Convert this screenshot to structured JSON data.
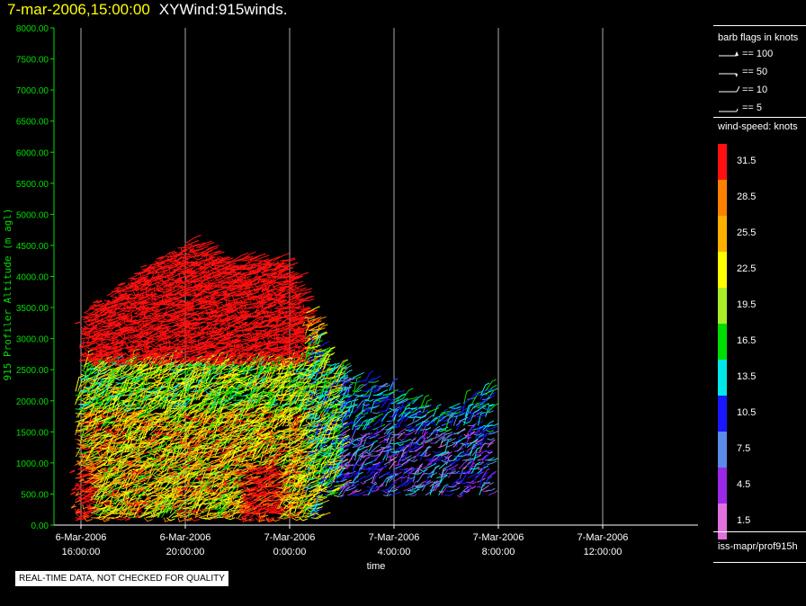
{
  "header": {
    "datetime": "7-mar-2006,15:00:00",
    "product": "XYWind:915winds."
  },
  "chart_data": {
    "type": "wind-barb time-height plot",
    "ylabel": "915 Profiler Altitude (m agl)",
    "xlabel": "time",
    "ylim": [
      0,
      8000
    ],
    "ytick_labels": [
      "0.00",
      "500.00",
      "1000.00",
      "1500.00",
      "2000.00",
      "2500.00",
      "3000.00",
      "3500.00",
      "4000.00",
      "4500.00",
      "5000.00",
      "5500.00",
      "6000.00",
      "6500.00",
      "7000.00",
      "7500.00",
      "8000.00"
    ],
    "xtick_labels": [
      {
        "date": "6-Mar-2006",
        "time": "16:00:00"
      },
      {
        "date": "6-Mar-2006",
        "time": "20:00:00"
      },
      {
        "date": "7-Mar-2006",
        "time": "0:00:00"
      },
      {
        "date": "7-Mar-2006",
        "time": "4:00:00"
      },
      {
        "date": "7-Mar-2006",
        "time": "8:00:00"
      },
      {
        "date": "7-Mar-2006",
        "time": "12:00:00"
      }
    ],
    "xlim_hours": [
      -1,
      16
    ],
    "grid": "vertical lines at x ticks",
    "speed_colors": [
      {
        "knots": "1.5",
        "color": "#e070e0"
      },
      {
        "knots": "4.5",
        "color": "#9a28e6"
      },
      {
        "knots": "7.5",
        "color": "#5b8ae8"
      },
      {
        "knots": "10.5",
        "color": "#1818ff"
      },
      {
        "knots": "13.5",
        "color": "#00e8e8"
      },
      {
        "knots": "16.5",
        "color": "#00dd00"
      },
      {
        "knots": "19.5",
        "color": "#a8ee28"
      },
      {
        "knots": "22.5",
        "color": "#ffff00"
      },
      {
        "knots": "25.5",
        "color": "#ffb000"
      },
      {
        "knots": "28.5",
        "color": "#ff8000"
      },
      {
        "knots": "31.5",
        "color": "#ff1010"
      }
    ],
    "approx_profile": [
      {
        "hour": 0.0,
        "max_alt": 3400
      },
      {
        "hour": 2.5,
        "max_alt": 4200
      },
      {
        "hour": 4.0,
        "max_alt": 4550
      },
      {
        "hour": 5.5,
        "max_alt": 4300
      },
      {
        "hour": 7.8,
        "max_alt": 4300
      },
      {
        "hour": 9.5,
        "max_alt": 2500
      },
      {
        "hour": 12.0,
        "max_alt": 2200
      },
      {
        "hour": 13.5,
        "max_alt": 1800
      },
      {
        "hour": 15.5,
        "max_alt": 2200
      }
    ]
  },
  "legend": {
    "barb_title": "barb flags in knots",
    "barbs": [
      "== 100",
      "== 50",
      "== 10",
      "== 5"
    ],
    "speed_title": "wind-speed: knots",
    "source": "iss-mapr/prof915h"
  },
  "colors": {
    "axis": "#00dd00",
    "grid": "#aaaaaa",
    "title_date": "#ffff00"
  },
  "footer": {
    "note": "REAL-TIME DATA, NOT CHECKED FOR QUALITY"
  }
}
